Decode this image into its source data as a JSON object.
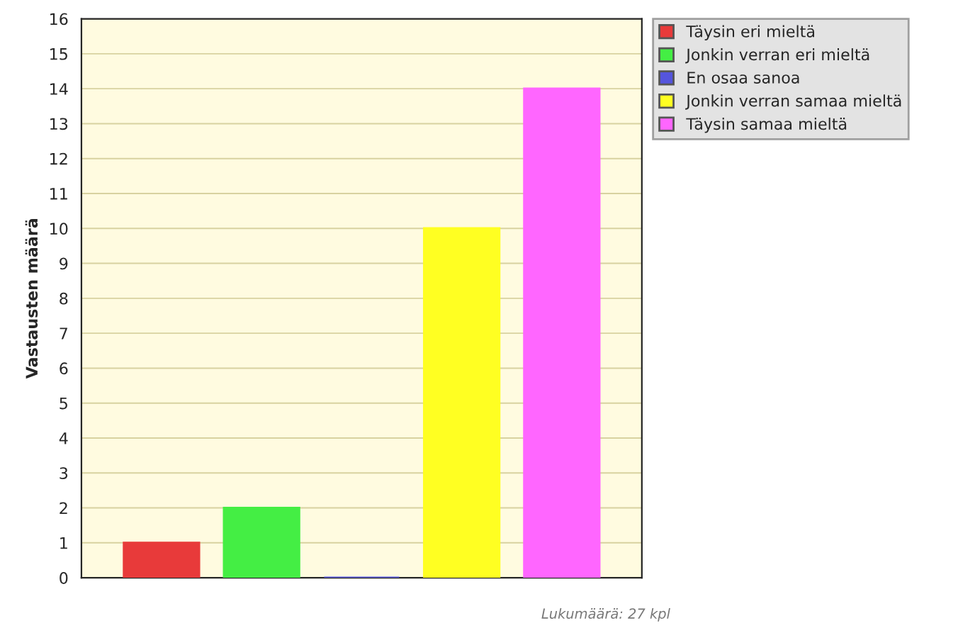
{
  "chart_data": {
    "type": "bar",
    "ylabel": "Vastausten määrä",
    "categories": [
      null,
      null,
      null,
      null,
      null
    ],
    "series": [
      {
        "name": "Täysin eri mieltä",
        "color": "#e83a3a",
        "values": [
          1,
          null,
          null,
          null,
          null
        ]
      },
      {
        "name": "Jonkin verran eri mieltä",
        "color": "#44ee44",
        "values": [
          null,
          2,
          null,
          null,
          null
        ]
      },
      {
        "name": "En osaa sanoa",
        "color": "#5555dd",
        "values": [
          null,
          null,
          0,
          null,
          null
        ]
      },
      {
        "name": "Jonkin verran samaa mieltä",
        "color": "#ffff22",
        "values": [
          null,
          null,
          null,
          10,
          null
        ]
      },
      {
        "name": "Täysin samaa mieltä",
        "color": "#ff66ff",
        "values": [
          null,
          null,
          null,
          null,
          14
        ]
      }
    ],
    "ylim": [
      0,
      16
    ],
    "yticks": [
      0,
      1,
      2,
      3,
      4,
      5,
      6,
      7,
      8,
      9,
      10,
      11,
      12,
      13,
      14,
      15,
      16
    ],
    "grid": "y",
    "legend": "top right",
    "annotations": [
      "Lukumäärä: 27 kpl"
    ]
  }
}
